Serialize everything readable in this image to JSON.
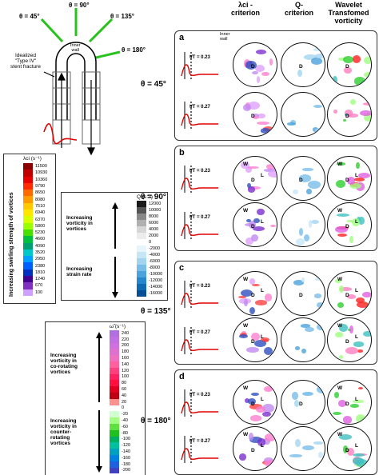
{
  "columns": {
    "lci": "λci -\ncriterion",
    "q": "Q-\ncriterion",
    "wavelet": "Wavelet\nTransfomed\nvorticity"
  },
  "wall_labels": {
    "inner": "Inner\nwall",
    "outer": "Outer\nwall"
  },
  "schematic": {
    "theta45": "θ = 45°",
    "theta90": "θ = 90°",
    "theta135": "θ = 135°",
    "theta180": "θ = 180°",
    "inner_wall": "Inner\nwall",
    "stent_label": "Idealized\n\"Type IV\"\nstent fracture"
  },
  "panels": [
    {
      "letter": "a",
      "theta": "θ = 45°",
      "t1": "t/T = 0.23",
      "t2": "t/T = 0.27"
    },
    {
      "letter": "b",
      "theta": "θ = 90°",
      "t1": "t/T = 0.23",
      "t2": "t/T = 0.27"
    },
    {
      "letter": "c",
      "theta": "θ = 135°",
      "t1": "t/T = 0.23",
      "t2": "t/T = 0.27"
    },
    {
      "letter": "d",
      "theta": "θ = 180°",
      "t1": "t/T = 0.23",
      "t2": "t/T = 0.27"
    }
  ],
  "markers": {
    "D": "D",
    "L": "L",
    "W": "W"
  },
  "lci_legend": {
    "unit": "λci (s⁻¹)",
    "side_label": "Increasing swirling strength of vortices",
    "values": [
      "11500",
      "10930",
      "10360",
      "9790",
      "8650",
      "8080",
      "7510",
      "6940",
      "6370",
      "5800",
      "5230",
      "4660",
      "4090",
      "3520",
      "2950",
      "2380",
      "1810",
      "1240",
      "670",
      "100"
    ],
    "colors": [
      "#8b0000",
      "#c00000",
      "#e60000",
      "#ff2a00",
      "#ff6a00",
      "#ff9a00",
      "#ffc800",
      "#ffe600",
      "#d8ff00",
      "#9aff00",
      "#48e000",
      "#00c040",
      "#00a070",
      "#00c8c8",
      "#00a0ff",
      "#0060ff",
      "#0030c0",
      "#400090",
      "#8030c0",
      "#d0a0ff"
    ]
  },
  "q_legend": {
    "unit": "Q (s⁻²)",
    "text_top": "Increasing\nvorticity in\nvortices",
    "text_bottom": "Increasing\nstrain rate",
    "values": [
      "12000",
      "10000",
      "8000",
      "6000",
      "4000",
      "2000",
      "0",
      "-2000",
      "-4000",
      "-6000",
      "-8000",
      "-10000",
      "-12000",
      "-14000",
      "-16000"
    ],
    "colors": [
      "#1a1a1a",
      "#555555",
      "#888888",
      "#b0b0b0",
      "#d6d6d6",
      "#ececec",
      "#ffffff",
      "#e6f4fb",
      "#c6e6f6",
      "#a2d4f0",
      "#78bde8",
      "#4aa3dd",
      "#2587cc",
      "#0f6ab4",
      "#064f95"
    ]
  },
  "omega_legend": {
    "unit": "ω̃ (s⁻¹)",
    "text_top": "Increasing\nvorticity in\nco-rotating\nvortices",
    "text_bottom": "Increasing\nvorticity in\ncounter-\nrotating\nvortices",
    "values": [
      "240",
      "220",
      "200",
      "180",
      "160",
      "140",
      "120",
      "100",
      "80",
      "60",
      "40",
      "20",
      "0",
      "-20",
      "-40",
      "-60",
      "-80",
      "-100",
      "-120",
      "-140",
      "-160",
      "-180",
      "-200"
    ],
    "colors": [
      "#b070e0",
      "#c070e0",
      "#d070e0",
      "#e070d0",
      "#f070c0",
      "#ff60a0",
      "#ff4080",
      "#ff2060",
      "#ff1040",
      "#e00020",
      "#c00010",
      "#ff9090",
      "#ffffff",
      "#d0ffd0",
      "#a0ff80",
      "#60e040",
      "#20c020",
      "#00b060",
      "#00c0a0",
      "#00a0c0",
      "#0080e0",
      "#2060e0",
      "#4040c0"
    ]
  }
}
